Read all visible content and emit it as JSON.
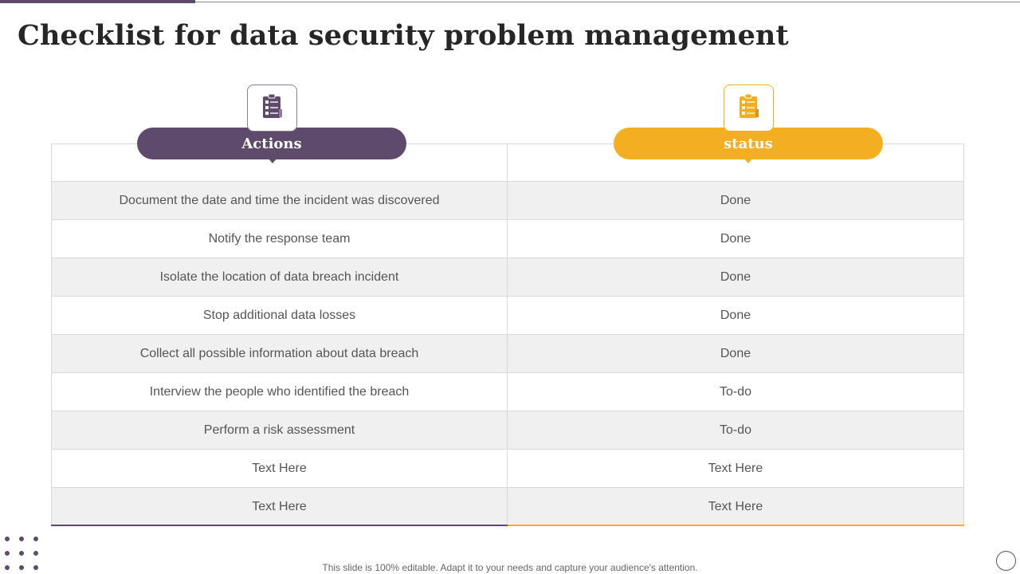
{
  "title": "Checklist for data security problem management",
  "headers": {
    "actions": "Actions",
    "status": "status"
  },
  "icons": {
    "actions": "clipboard-checklist-icon",
    "status": "clipboard-checklist-icon"
  },
  "rows": [
    {
      "action": "Document the date and time the incident was discovered",
      "status": "Done"
    },
    {
      "action": "Notify the response team",
      "status": "Done"
    },
    {
      "action": "Isolate the location of data breach incident",
      "status": "Done"
    },
    {
      "action": "Stop additional data losses",
      "status": "Done"
    },
    {
      "action": "Collect all possible information  about data breach",
      "status": "Done"
    },
    {
      "action": "Interview  the people who identified the breach",
      "status": "To-do"
    },
    {
      "action": "Perform a risk assessment",
      "status": "To-do"
    },
    {
      "action": "Text Here",
      "status": "Text Here"
    },
    {
      "action": "Text Here",
      "status": "Text Here"
    }
  ],
  "footer": "This slide is 100% editable. Adapt it to your needs and capture your audience's attention.",
  "colors": {
    "accent_purple": "#5e4a6a",
    "accent_orange": "#f3ae22",
    "row_gray": "#f0f0f0"
  }
}
